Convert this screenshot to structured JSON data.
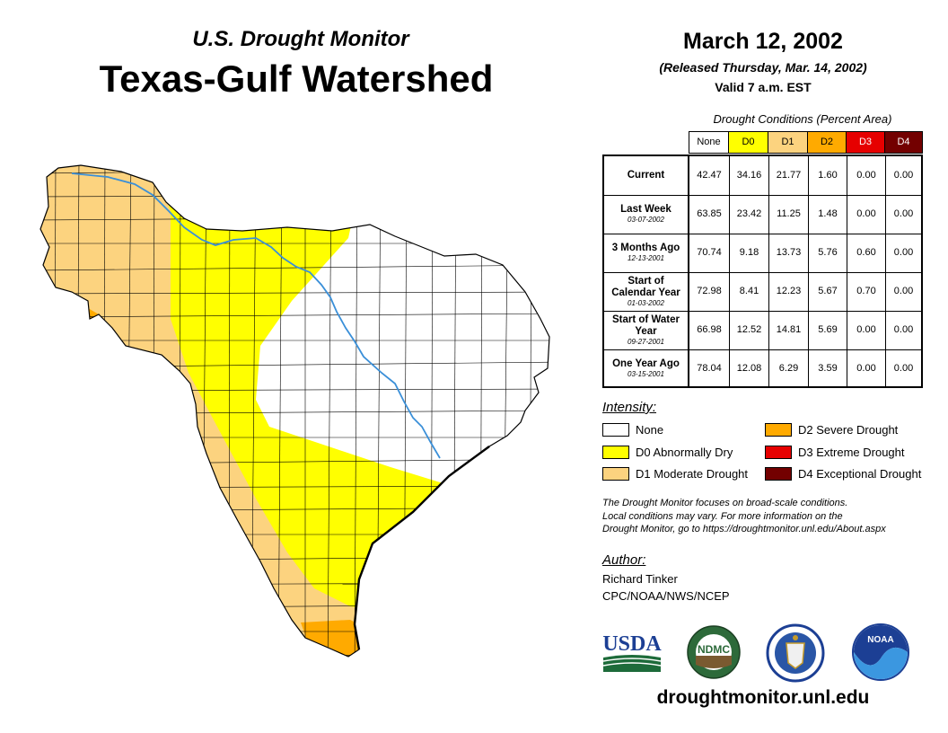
{
  "header": {
    "subtitle": "U.S. Drought Monitor",
    "title": "Texas-Gulf Watershed",
    "date": "March 12, 2002",
    "released": "(Released Thursday, Mar. 14, 2002)",
    "valid": "Valid 7 a.m. EST"
  },
  "table": {
    "caption": "Drought Conditions (Percent Area)",
    "columns": [
      "None",
      "D0",
      "D1",
      "D2",
      "D3",
      "D4"
    ],
    "column_colors": [
      "#ffffff",
      "#ffff00",
      "#fcd37f",
      "#ffaa00",
      "#e60000",
      "#730000"
    ],
    "rows": [
      {
        "label": "Current",
        "sub": "",
        "values": [
          "42.47",
          "34.16",
          "21.77",
          "1.60",
          "0.00",
          "0.00"
        ]
      },
      {
        "label": "Last Week",
        "sub": "03-07-2002",
        "values": [
          "63.85",
          "23.42",
          "11.25",
          "1.48",
          "0.00",
          "0.00"
        ]
      },
      {
        "label": "3 Months Ago",
        "sub": "12-13-2001",
        "values": [
          "70.74",
          "9.18",
          "13.73",
          "5.76",
          "0.60",
          "0.00"
        ]
      },
      {
        "label": "Start of Calendar Year",
        "sub": "01-03-2002",
        "values": [
          "72.98",
          "8.41",
          "12.23",
          "5.67",
          "0.70",
          "0.00"
        ]
      },
      {
        "label": "Start of Water Year",
        "sub": "09-27-2001",
        "values": [
          "66.98",
          "12.52",
          "14.81",
          "5.69",
          "0.00",
          "0.00"
        ]
      },
      {
        "label": "One Year Ago",
        "sub": "03-15-2001",
        "values": [
          "78.04",
          "12.08",
          "6.29",
          "3.59",
          "0.00",
          "0.00"
        ]
      }
    ]
  },
  "legend": {
    "title": "Intensity:",
    "items": [
      {
        "label": "None",
        "color": "#ffffff"
      },
      {
        "label": "D0 Abnormally Dry",
        "color": "#ffff00"
      },
      {
        "label": "D1 Moderate Drought",
        "color": "#fcd37f"
      },
      {
        "label": "D2 Severe Drought",
        "color": "#ffaa00"
      },
      {
        "label": "D3 Extreme Drought",
        "color": "#e60000"
      },
      {
        "label": "D4 Exceptional Drought",
        "color": "#730000"
      }
    ]
  },
  "note": [
    "The Drought Monitor focuses on broad-scale conditions.",
    "Local conditions may vary. For more information on the",
    "Drought Monitor, go to https://droughtmonitor.unl.edu/About.aspx"
  ],
  "author": {
    "title": "Author:",
    "name": "Richard Tinker",
    "org": "CPC/NOAA/NWS/NCEP"
  },
  "logos": {
    "usda": "USDA",
    "ndmc": "NDMC",
    "noaa": "NOAA"
  },
  "website": "droughtmonitor.unl.edu",
  "map_colors": {
    "d0": "#ffff00",
    "d1": "#fcd37f",
    "d2": "#ffaa00",
    "none": "#ffffff",
    "river": "#3a8fd8"
  },
  "icons": [
    "usda-logo",
    "ndmc-logo",
    "commerce-seal",
    "noaa-logo"
  ]
}
